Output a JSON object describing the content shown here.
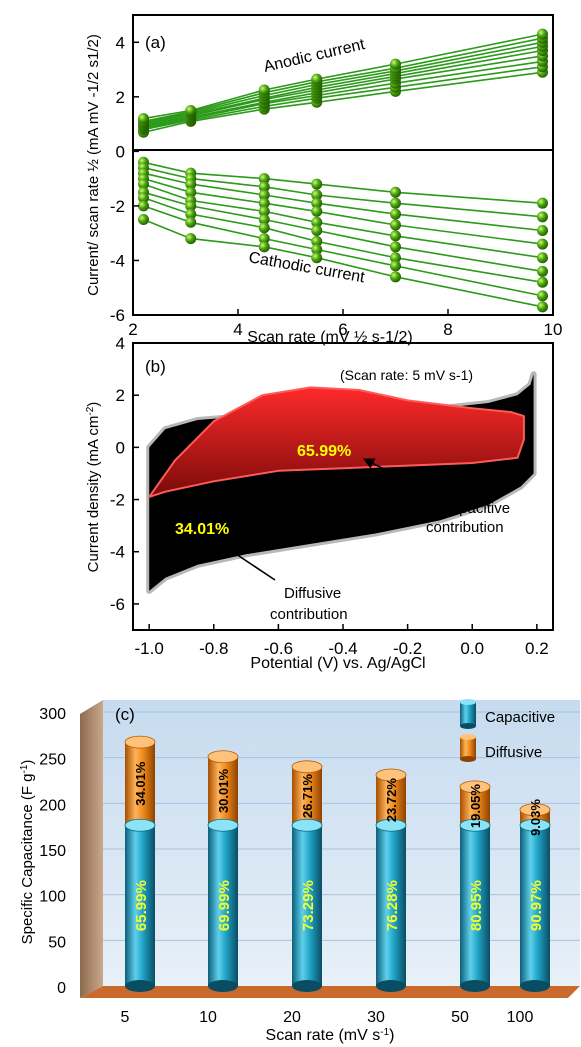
{
  "chart_data": [
    {
      "panel": "(a)",
      "type": "scatter",
      "xlabel": "Scan rate (mV ½ s-1/2)",
      "ylabel": "Current/ scan rate ½ (mA mV -1/2 s1/2)",
      "xlim": [
        2,
        10
      ],
      "ylim": [
        -6,
        5
      ],
      "xticks": [
        2,
        4,
        6,
        8,
        10
      ],
      "yticks": [
        -6,
        -4,
        -2,
        0,
        2,
        4
      ],
      "x": [
        2.2,
        3.1,
        4.5,
        5.5,
        7.0,
        9.8
      ],
      "annotations": [
        "Anodic current",
        "Cathodic current"
      ],
      "series": [
        {
          "group": "anodic",
          "values": [
            0.7,
            1.1,
            1.55,
            1.8,
            2.2,
            2.9
          ]
        },
        {
          "group": "anodic",
          "values": [
            0.8,
            1.15,
            1.65,
            1.95,
            2.35,
            3.1
          ]
        },
        {
          "group": "anodic",
          "values": [
            0.85,
            1.2,
            1.75,
            2.05,
            2.5,
            3.3
          ]
        },
        {
          "group": "anodic",
          "values": [
            0.9,
            1.25,
            1.8,
            2.15,
            2.65,
            3.5
          ]
        },
        {
          "group": "anodic",
          "values": [
            0.95,
            1.3,
            1.9,
            2.25,
            2.75,
            3.7
          ]
        },
        {
          "group": "anodic",
          "values": [
            1.0,
            1.35,
            1.95,
            2.35,
            2.85,
            3.85
          ]
        },
        {
          "group": "anodic",
          "values": [
            1.05,
            1.4,
            2.05,
            2.45,
            2.95,
            4.0
          ]
        },
        {
          "group": "anodic",
          "values": [
            1.1,
            1.45,
            2.15,
            2.55,
            3.05,
            4.15
          ]
        },
        {
          "group": "anodic",
          "values": [
            1.2,
            1.5,
            2.25,
            2.65,
            3.2,
            4.3
          ]
        },
        {
          "group": "cathodic",
          "values": [
            -0.4,
            -0.8,
            -1.0,
            -1.2,
            -1.5,
            -1.9
          ]
        },
        {
          "group": "cathodic",
          "values": [
            -0.6,
            -1.0,
            -1.3,
            -1.6,
            -1.9,
            -2.4
          ]
        },
        {
          "group": "cathodic",
          "values": [
            -0.8,
            -1.2,
            -1.6,
            -1.9,
            -2.3,
            -2.9
          ]
        },
        {
          "group": "cathodic",
          "values": [
            -1.0,
            -1.5,
            -1.9,
            -2.2,
            -2.7,
            -3.4
          ]
        },
        {
          "group": "cathodic",
          "values": [
            -1.2,
            -1.8,
            -2.2,
            -2.6,
            -3.1,
            -3.9
          ]
        },
        {
          "group": "cathodic",
          "values": [
            -1.5,
            -2.0,
            -2.5,
            -2.9,
            -3.5,
            -4.4
          ]
        },
        {
          "group": "cathodic",
          "values": [
            -1.7,
            -2.3,
            -2.8,
            -3.3,
            -3.9,
            -4.8
          ]
        },
        {
          "group": "cathodic",
          "values": [
            -2.0,
            -2.6,
            -3.2,
            -3.6,
            -4.2,
            -5.3
          ]
        },
        {
          "group": "cathodic",
          "values": [
            -2.5,
            -3.2,
            -3.5,
            -3.9,
            -4.6,
            -5.7
          ]
        }
      ]
    },
    {
      "panel": "(b)",
      "type": "area",
      "xlabel": "Potential (V) vs. Ag/AgCl",
      "ylabel": "Current density (mA cm-2)",
      "xlim": [
        -1.05,
        0.25
      ],
      "ylim": [
        -7,
        4
      ],
      "xticks": [
        -1.0,
        -0.8,
        -0.6,
        -0.4,
        -0.2,
        0.0,
        0.2
      ],
      "yticks": [
        -6,
        -4,
        -2,
        0,
        2,
        4
      ],
      "note": "(Scan rate: 5 mV s-1)",
      "total_cv": {
        "name": "Diffusive contribution",
        "percent_label": "34.01%",
        "upper": {
          "x": [
            -1.0,
            -0.95,
            -0.85,
            -0.7,
            -0.5,
            -0.3,
            -0.1,
            0.05,
            0.14,
            0.18,
            0.19
          ],
          "y": [
            0.0,
            0.7,
            1.05,
            1.2,
            1.3,
            1.35,
            1.5,
            1.7,
            2.0,
            2.4,
            2.8
          ]
        },
        "lower": {
          "x": [
            0.19,
            0.15,
            0.05,
            -0.1,
            -0.3,
            -0.5,
            -0.7,
            -0.85,
            -0.95,
            -1.0
          ],
          "y": [
            -1.0,
            -1.5,
            -2.2,
            -2.8,
            -3.3,
            -3.7,
            -4.1,
            -4.5,
            -5.0,
            -5.5
          ]
        }
      },
      "capacitive": {
        "name": "Capacitive contribution",
        "percent_label": "65.99%",
        "upper": {
          "x": [
            -1.0,
            -0.92,
            -0.8,
            -0.65,
            -0.5,
            -0.35,
            -0.2,
            0.0,
            0.12,
            0.16
          ],
          "y": [
            -1.9,
            -0.5,
            1.0,
            2.0,
            2.3,
            2.2,
            1.8,
            1.5,
            1.35,
            1.2
          ]
        },
        "lower": {
          "x": [
            0.16,
            0.14,
            0.0,
            -0.2,
            -0.4,
            -0.6,
            -0.8,
            -0.95,
            -1.0
          ],
          "y": [
            0.3,
            -0.4,
            -0.6,
            -0.7,
            -0.8,
            -0.9,
            -1.3,
            -1.7,
            -1.9
          ]
        }
      },
      "annotations": [
        "Capacitive contribution",
        "Diffusive contribution"
      ]
    },
    {
      "panel": "(c)",
      "type": "bar",
      "stacked": true,
      "xlabel": "Scan rate (mV s-1)",
      "ylabel": "Specific Capacitance (F g-1)",
      "ylim": [
        0,
        300
      ],
      "yticks": [
        0,
        50,
        100,
        150,
        200,
        250,
        300
      ],
      "categories": [
        "5",
        "10",
        "20",
        "30",
        "50",
        "100"
      ],
      "legend": {
        "position": "top-right",
        "items": [
          "Capacitive",
          "Diffusive"
        ]
      },
      "series": [
        {
          "name": "Capacitive",
          "color": "#1a93b3",
          "values": [
            176,
            176,
            176,
            176,
            176,
            176
          ],
          "labels": [
            "65.99%",
            "69.99%",
            "73.29%",
            "76.28%",
            "80.95%",
            "90.97%"
          ]
        },
        {
          "name": "Diffusive",
          "color": "#e8760d",
          "values": [
            91,
            75,
            64,
            55,
            42,
            17
          ],
          "labels": [
            "34.01%",
            "30.01%",
            "26.71%",
            "23.72%",
            "19.05%",
            "9.03%"
          ]
        }
      ]
    }
  ]
}
